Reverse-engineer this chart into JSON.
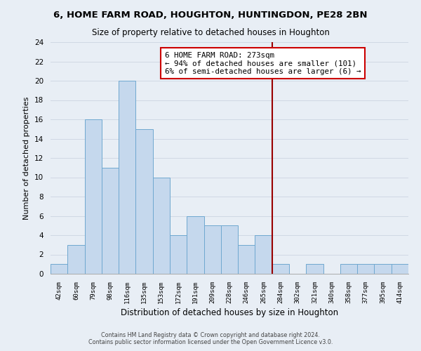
{
  "title": "6, HOME FARM ROAD, HOUGHTON, HUNTINGDON, PE28 2BN",
  "subtitle": "Size of property relative to detached houses in Houghton",
  "xlabel": "Distribution of detached houses by size in Houghton",
  "ylabel": "Number of detached properties",
  "bin_labels": [
    "42sqm",
    "60sqm",
    "79sqm",
    "98sqm",
    "116sqm",
    "135sqm",
    "153sqm",
    "172sqm",
    "191sqm",
    "209sqm",
    "228sqm",
    "246sqm",
    "265sqm",
    "284sqm",
    "302sqm",
    "321sqm",
    "340sqm",
    "358sqm",
    "377sqm",
    "395sqm",
    "414sqm"
  ],
  "bar_heights": [
    1,
    3,
    16,
    11,
    20,
    15,
    10,
    4,
    6,
    5,
    5,
    3,
    4,
    1,
    0,
    1,
    0,
    1,
    1,
    1,
    1
  ],
  "bar_color": "#c5d8ed",
  "bar_edge_color": "#6fa8d0",
  "grid_color": "#d0d8e4",
  "vline_pos": 12.5,
  "vline_color": "#990000",
  "annotation_title": "6 HOME FARM ROAD: 273sqm",
  "annotation_line1": "← 94% of detached houses are smaller (101)",
  "annotation_line2": "6% of semi-detached houses are larger (6) →",
  "annotation_box_edgecolor": "#cc0000",
  "ylim": [
    0,
    24
  ],
  "yticks": [
    0,
    2,
    4,
    6,
    8,
    10,
    12,
    14,
    16,
    18,
    20,
    22,
    24
  ],
  "footer_line1": "Contains HM Land Registry data © Crown copyright and database right 2024.",
  "footer_line2": "Contains public sector information licensed under the Open Government Licence v3.0.",
  "bg_color": "#e8eef5"
}
